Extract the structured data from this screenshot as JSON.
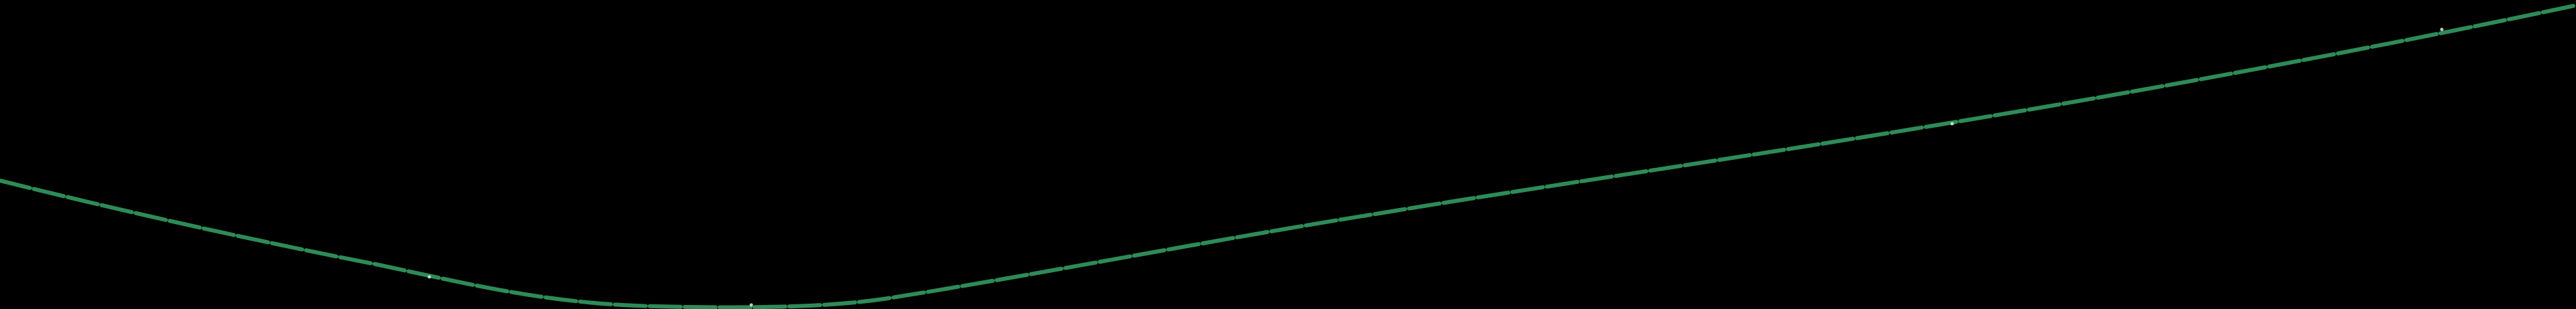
{
  "scene": {
    "background_color": "#000000",
    "stroke_color": "#2e8b57",
    "highlight_color": "#d8f0e0"
  }
}
